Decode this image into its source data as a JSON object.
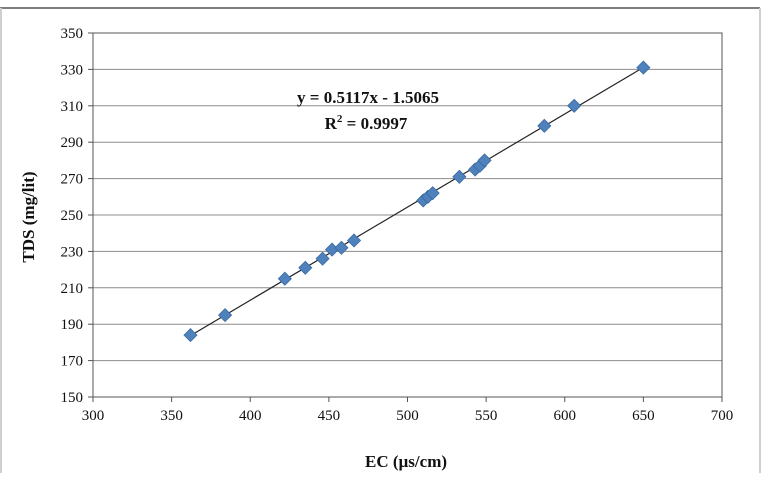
{
  "chart_data": {
    "type": "scatter",
    "xlabel": "EC (µs/cm)",
    "ylabel": "TDS (mg/lit)",
    "xlim": [
      300,
      700
    ],
    "ylim": [
      150,
      350
    ],
    "x_ticks": [
      "300",
      "350",
      "400",
      "450",
      "500",
      "550",
      "600",
      "650",
      "700"
    ],
    "y_ticks": [
      "150",
      "170",
      "190",
      "210",
      "230",
      "250",
      "270",
      "290",
      "310",
      "330",
      "350"
    ],
    "grid": "horizontal",
    "legend": "none",
    "marker_color": "#4f81bd",
    "trendline_color": "#222222",
    "series": [
      {
        "points": [
          [
            362,
            184
          ],
          [
            384,
            195
          ],
          [
            422,
            215
          ],
          [
            435,
            221
          ],
          [
            446,
            226
          ],
          [
            452,
            231
          ],
          [
            458,
            232
          ],
          [
            466,
            236
          ],
          [
            510,
            258
          ],
          [
            513,
            260
          ],
          [
            516,
            262
          ],
          [
            533,
            271
          ],
          [
            543,
            275
          ],
          [
            546,
            277
          ],
          [
            549,
            280
          ],
          [
            587,
            299
          ],
          [
            606,
            310
          ],
          [
            650,
            331
          ]
        ]
      }
    ],
    "trendline": {
      "slope": 0.5117,
      "intercept": -1.5065,
      "x_range": [
        362,
        650
      ]
    },
    "annotation": {
      "equation": "y = 0.5117x - 1.5065",
      "r2_prefix": "R",
      "r2_sup": "2",
      "r2_rest": " = 0.9997"
    }
  }
}
